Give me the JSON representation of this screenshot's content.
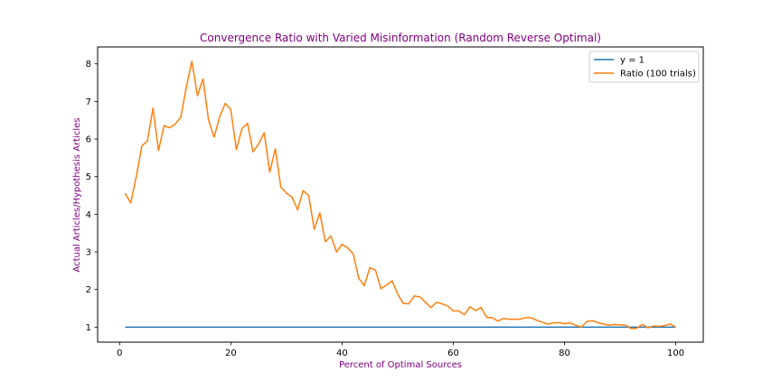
{
  "chart_data": {
    "type": "line",
    "title": "Convergence Ratio with Varied Misinformation (Random Reverse Optimal)",
    "xlabel": "Percent of Optimal Sources",
    "ylabel": "Actual Articles/Hypothesis Articles",
    "label_color": "#800080",
    "xlim": [
      -3.95,
      104.95
    ],
    "ylim": [
      0.6,
      8.45
    ],
    "xticks": [
      0,
      20,
      40,
      60,
      80,
      100
    ],
    "yticks": [
      1,
      2,
      3,
      4,
      5,
      6,
      7,
      8
    ],
    "grid": false,
    "legend_position": "top-right",
    "series": [
      {
        "name": "y = 1",
        "color": "#1f77b4",
        "x": [
          1,
          100
        ],
        "y": [
          1,
          1
        ]
      },
      {
        "name": "Ratio (100 trials)",
        "color": "#ff7f0e",
        "x": [
          1,
          2,
          3,
          4,
          5,
          6,
          7,
          8,
          9,
          10,
          11,
          12,
          13,
          14,
          15,
          16,
          17,
          18,
          19,
          20,
          21,
          22,
          23,
          24,
          25,
          26,
          27,
          28,
          29,
          30,
          31,
          32,
          33,
          34,
          35,
          36,
          37,
          38,
          39,
          40,
          41,
          42,
          43,
          44,
          45,
          46,
          47,
          48,
          49,
          50,
          51,
          52,
          53,
          54,
          55,
          56,
          57,
          58,
          59,
          60,
          61,
          62,
          63,
          64,
          65,
          66,
          67,
          68,
          69,
          70,
          71,
          72,
          73,
          74,
          75,
          76,
          77,
          78,
          79,
          80,
          81,
          82,
          83,
          84,
          85,
          86,
          87,
          88,
          89,
          90,
          91,
          92,
          93,
          94,
          95,
          96,
          97,
          98,
          99,
          100
        ],
        "y": [
          4.56,
          4.3,
          5.0,
          5.82,
          5.95,
          6.82,
          5.7,
          6.36,
          6.3,
          6.4,
          6.58,
          7.38,
          8.07,
          7.15,
          7.6,
          6.5,
          6.05,
          6.6,
          6.95,
          6.78,
          5.72,
          6.28,
          6.42,
          5.66,
          5.87,
          6.17,
          5.12,
          5.74,
          4.72,
          4.56,
          4.46,
          4.12,
          4.63,
          4.5,
          3.6,
          4.04,
          3.27,
          3.42,
          3.0,
          3.2,
          3.11,
          2.95,
          2.3,
          2.1,
          2.58,
          2.52,
          2.02,
          2.12,
          2.23,
          1.88,
          1.63,
          1.62,
          1.83,
          1.8,
          1.66,
          1.52,
          1.66,
          1.62,
          1.56,
          1.43,
          1.43,
          1.33,
          1.54,
          1.44,
          1.52,
          1.26,
          1.25,
          1.16,
          1.23,
          1.21,
          1.21,
          1.21,
          1.25,
          1.25,
          1.18,
          1.13,
          1.08,
          1.11,
          1.12,
          1.09,
          1.11,
          1.05,
          1.0,
          1.15,
          1.17,
          1.12,
          1.08,
          1.05,
          1.07,
          1.06,
          1.05,
          0.96,
          0.97,
          1.07,
          0.98,
          1.03,
          1.02,
          1.04,
          1.08,
          1.0
        ]
      }
    ]
  }
}
